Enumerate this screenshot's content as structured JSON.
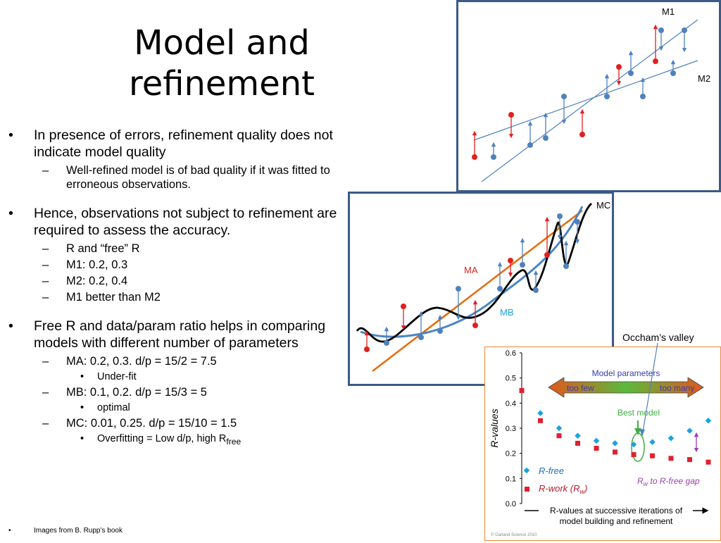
{
  "slide": {
    "title_line1": "Model and",
    "title_line2": "refinement",
    "bullets": {
      "b1": "In presence of errors, refinement quality does not indicate model quality",
      "b1_1": "Well-refined model is of bad quality if it was fitted to erroneous observations.",
      "b2": "Hence, observations not subject to refinement are required to assess the accuracy.",
      "b2_1": "R and “free” R",
      "b2_2": "M1: 0.2, 0.3",
      "b2_3": "M2: 0.2, 0.4",
      "b2_4": "M1 better than M2",
      "b3": "Free R and data/param ratio helps in comparing models with different number of parameters",
      "b3_1": "MA: 0.2, 0.3. d/p = 15/2 = 7.5",
      "b3_1_1": "Under-fit",
      "b3_2": "MB: 0.1, 0.2. d/p = 15/3 = 5",
      "b3_2_1": "optimal",
      "b3_3": "MC: 0.01, 0.25. d/p = 15/10 = 1.5",
      "b3_3_1_pre": "Overfitting = Low d/p, high R",
      "b3_3_1_sub": "free"
    },
    "markers": {
      "level1": "•",
      "level2": "–",
      "level3": "•"
    },
    "footnote": "Images from B. Rupp’s book"
  },
  "figures": {
    "m1m2": {
      "label_m1": "M1",
      "label_m2": "M2"
    },
    "mamb": {
      "label_ma": "MA",
      "label_mb": "MB",
      "label_mc": "MC"
    },
    "occam": {
      "annotation": "Occham’s valley",
      "y_axis_label": "R-values",
      "y_ticks": [
        "0.6",
        "0.5",
        "0.4",
        "0.3",
        "0.2",
        "0.1",
        "0.0"
      ],
      "banner_title": "Model parameters",
      "banner_left": "too few",
      "banner_right": "too many",
      "best_model": "Best model",
      "legend_rfree": "R-free",
      "legend_rwork": "R-work (R",
      "legend_rwork_sub": "w",
      "legend_rwork_end": ")",
      "gap_label_a": "R",
      "gap_label_sub": "w",
      "gap_label_b": " to R-free gap",
      "x_caption_1": "R-values at successive iterations of",
      "x_caption_2": "model building and refinement",
      "copyright": "© Garland Science 2010"
    }
  },
  "colors": {
    "point_blue": "#4f81bd",
    "point_red": "#e02020",
    "line_orange": "#e36c0a",
    "line_mb": "#4a86c5",
    "frame": "#3b5a86",
    "rfree": "#1ba1e2",
    "rwork": "#e02030",
    "banner_green": "#3fae3f"
  },
  "chart_data": {
    "type": "scatter",
    "y_label": "R-values",
    "ylim": [
      0.0,
      0.6
    ],
    "series": [
      {
        "name": "R-free",
        "values": [
          0.36,
          0.3,
          0.27,
          0.25,
          0.24,
          0.235,
          0.245,
          0.26,
          0.29,
          0.33
        ]
      },
      {
        "name": "R-work (Rw)",
        "values": [
          0.45,
          0.33,
          0.27,
          0.24,
          0.22,
          0.205,
          0.195,
          0.19,
          0.18,
          0.175,
          0.165
        ]
      }
    ]
  }
}
